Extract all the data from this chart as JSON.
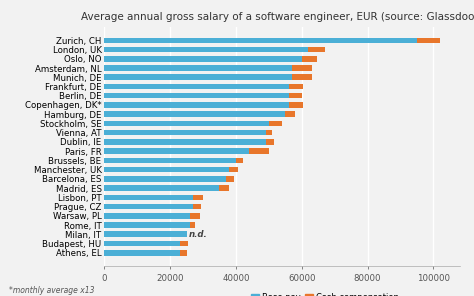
{
  "title": "Average annual gross salary of a software engineer, EUR (source: Glassdoor)",
  "footnote": "*monthly average x13",
  "cities": [
    "Zurich, CH",
    "London, UK",
    "Oslo, NO",
    "Amsterdam, NL",
    "Munich, DE",
    "Frankfurt, DE",
    "Berlin, DE",
    "Copenhagen, DK*",
    "Hamburg, DE",
    "Stockholm, SE",
    "Vienna, AT",
    "Dublin, IE",
    "Paris, FR",
    "Brussels, BE",
    "Manchester, UK",
    "Barcelona, ES",
    "Madrid, ES",
    "Lisbon, PT",
    "Prague, CZ",
    "Warsaw, PL",
    "Rome, IT",
    "Milan, IT",
    "Budapest, HU",
    "Athens, EL"
  ],
  "base_pay": [
    95000,
    62000,
    60000,
    57000,
    57000,
    56000,
    56000,
    56000,
    55000,
    50000,
    49000,
    49000,
    44000,
    40000,
    38000,
    37000,
    35000,
    27000,
    27000,
    26000,
    26000,
    25000,
    23000,
    23000
  ],
  "cash_compensation": [
    7000,
    5000,
    4500,
    6000,
    6000,
    4500,
    4000,
    4500,
    3000,
    4000,
    2000,
    2500,
    6000,
    2000,
    2500,
    2500,
    3000,
    3000,
    2500,
    3000,
    1500,
    0,
    2500,
    2000
  ],
  "milan_nd_index": 21,
  "base_color": "#4bafd6",
  "cash_color": "#e8762b",
  "background_color": "#f2f2f2",
  "title_fontsize": 7.5,
  "label_fontsize": 6.2,
  "tick_fontsize": 6.2,
  "xlim": [
    0,
    108000
  ],
  "xticks": [
    0,
    20000,
    40000,
    60000,
    80000,
    100000
  ],
  "xtick_labels": [
    "0",
    "20000",
    "40000",
    "60000",
    "80000",
    "100000"
  ]
}
